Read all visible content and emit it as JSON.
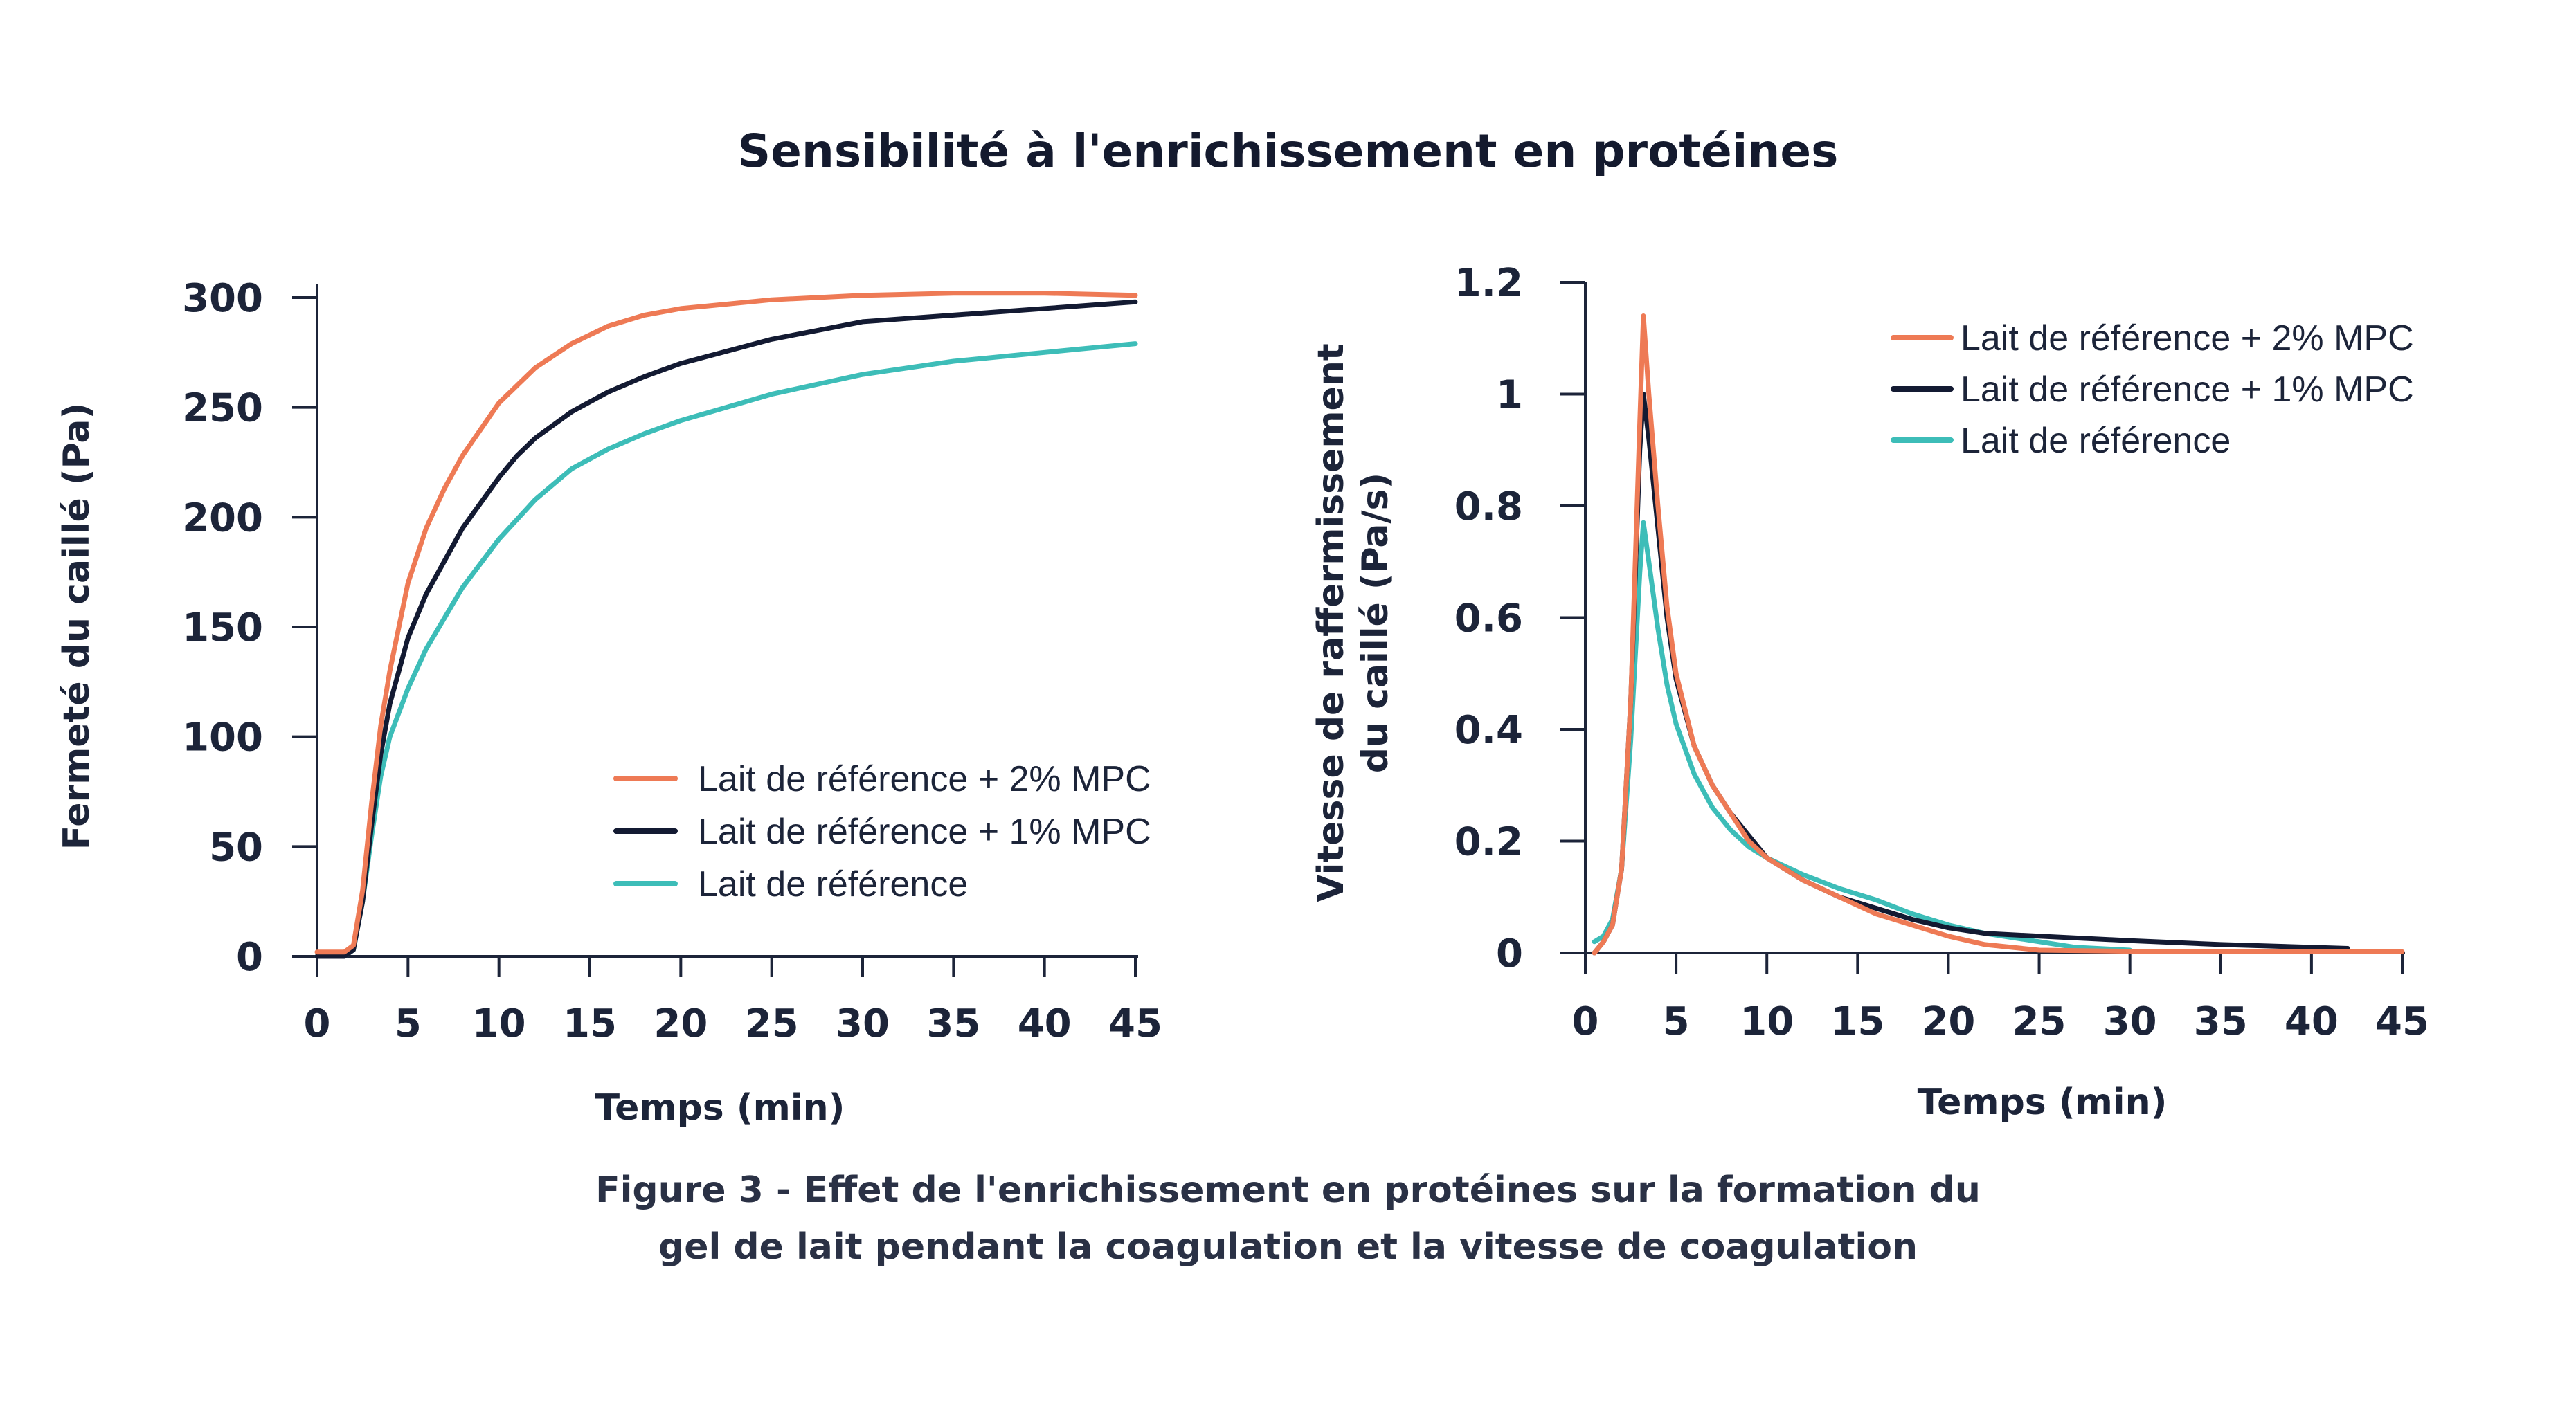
{
  "title": "Sensibilité à l'enrichissement en protéines",
  "caption": {
    "line1": "Figure 3 - Effet de l'enrichissement en protéines sur la formation du",
    "line2": "gel de lait pendant la coagulation et la vitesse de coagulation"
  },
  "colors": {
    "orange": "#ee7a55",
    "navy": "#131a32",
    "teal": "#3dbdb8",
    "axis": "#1c2439"
  },
  "chart_data": [
    {
      "type": "line",
      "xlabel": "Temps (min)",
      "ylabel": "Fermeté du caillé (Pa)",
      "xlim": [
        0,
        45
      ],
      "ylim": [
        0,
        300
      ],
      "xticks": [
        "0",
        "5",
        "10",
        "15",
        "20",
        "25",
        "30",
        "35",
        "40",
        "45"
      ],
      "yticks": [
        "0",
        "50",
        "100",
        "150",
        "200",
        "250",
        "300"
      ],
      "grid": false,
      "legend_position": "bottom-right",
      "series": [
        {
          "name": "Lait de référence + 2% MPC",
          "color": "#ee7a55",
          "x": [
            0,
            1.5,
            2,
            2.5,
            3,
            3.5,
            4,
            5,
            6,
            7,
            8,
            10,
            12,
            14,
            16,
            18,
            20,
            25,
            30,
            35,
            40,
            45
          ],
          "y": [
            2,
            2,
            5,
            30,
            70,
            105,
            130,
            170,
            195,
            213,
            228,
            252,
            268,
            279,
            287,
            292,
            295,
            299,
            301,
            302,
            302,
            301
          ]
        },
        {
          "name": "Lait de référence + 1% MPC",
          "color": "#131a32",
          "x": [
            0,
            1.5,
            2,
            2.5,
            3,
            3.5,
            4,
            5,
            6,
            7,
            8,
            10,
            11,
            12,
            14,
            16,
            18,
            20,
            25,
            30,
            35,
            40,
            45
          ],
          "y": [
            0,
            0,
            3,
            25,
            60,
            92,
            115,
            145,
            165,
            180,
            195,
            218,
            228,
            236,
            248,
            257,
            264,
            270,
            281,
            289,
            292,
            295,
            298
          ]
        },
        {
          "name": "Lait de référence",
          "color": "#3dbdb8",
          "x": [
            0,
            1.5,
            2,
            2.5,
            3,
            3.5,
            4,
            5,
            6,
            8,
            10,
            12,
            14,
            16,
            18,
            20,
            25,
            30,
            35,
            40,
            45
          ],
          "y": [
            0,
            0,
            3,
            25,
            55,
            82,
            100,
            122,
            140,
            168,
            190,
            208,
            222,
            231,
            238,
            244,
            256,
            265,
            271,
            275,
            279
          ]
        }
      ]
    },
    {
      "type": "line",
      "xlabel": "Temps (min)",
      "ylabel": "Vitesse de raffermissement du caillé (Pa/s)",
      "ylabel_line1": "Vitesse de raffermissement",
      "ylabel_line2": "du caillé (Pa/s)",
      "xlim": [
        0,
        45
      ],
      "ylim": [
        0,
        1.2
      ],
      "xticks": [
        "0",
        "5",
        "10",
        "15",
        "20",
        "25",
        "30",
        "35",
        "40",
        "45"
      ],
      "yticks": [
        "0",
        "0.2",
        "0.4",
        "0.6",
        "0.8",
        "1",
        "1.2"
      ],
      "grid": false,
      "legend_position": "top-right",
      "series": [
        {
          "name": "Lait de référence + 2% MPC",
          "color": "#ee7a55",
          "x": [
            0.5,
            1,
            1.5,
            2,
            2.5,
            3,
            3.2,
            3.5,
            4,
            4.5,
            5,
            6,
            7,
            8,
            9,
            10,
            12,
            14,
            16,
            18,
            20,
            22,
            25,
            30,
            35,
            40,
            45
          ],
          "y": [
            0,
            0.02,
            0.05,
            0.15,
            0.45,
            0.95,
            1.14,
            1.0,
            0.8,
            0.62,
            0.5,
            0.37,
            0.3,
            0.25,
            0.2,
            0.17,
            0.13,
            0.1,
            0.07,
            0.05,
            0.03,
            0.015,
            0.005,
            0.003,
            0.003,
            0.002,
            0.002
          ]
        },
        {
          "name": "Lait de référence + 1% MPC",
          "color": "#131a32",
          "x": [
            0.5,
            1,
            1.5,
            2,
            2.5,
            3,
            3.2,
            3.5,
            4,
            4.5,
            5,
            6,
            7,
            8,
            9,
            10,
            12,
            14,
            16,
            18,
            20,
            22,
            25,
            30,
            35,
            40,
            42
          ],
          "y": [
            0,
            0.02,
            0.05,
            0.15,
            0.45,
            0.9,
            1.0,
            0.92,
            0.76,
            0.6,
            0.49,
            0.37,
            0.3,
            0.25,
            0.21,
            0.17,
            0.13,
            0.1,
            0.08,
            0.06,
            0.045,
            0.035,
            0.03,
            0.022,
            0.015,
            0.01,
            0.008
          ]
        },
        {
          "name": "Lait de référence",
          "color": "#3dbdb8",
          "x": [
            0.5,
            1,
            1.5,
            2,
            2.5,
            3,
            3.2,
            3.5,
            4,
            4.5,
            5,
            6,
            7,
            8,
            9,
            10,
            12,
            14,
            16,
            18,
            20,
            22,
            25,
            27,
            30
          ],
          "y": [
            0.02,
            0.03,
            0.06,
            0.15,
            0.38,
            0.68,
            0.77,
            0.7,
            0.58,
            0.48,
            0.41,
            0.32,
            0.26,
            0.22,
            0.19,
            0.17,
            0.14,
            0.115,
            0.095,
            0.07,
            0.05,
            0.035,
            0.02,
            0.01,
            0.005
          ]
        }
      ]
    }
  ]
}
